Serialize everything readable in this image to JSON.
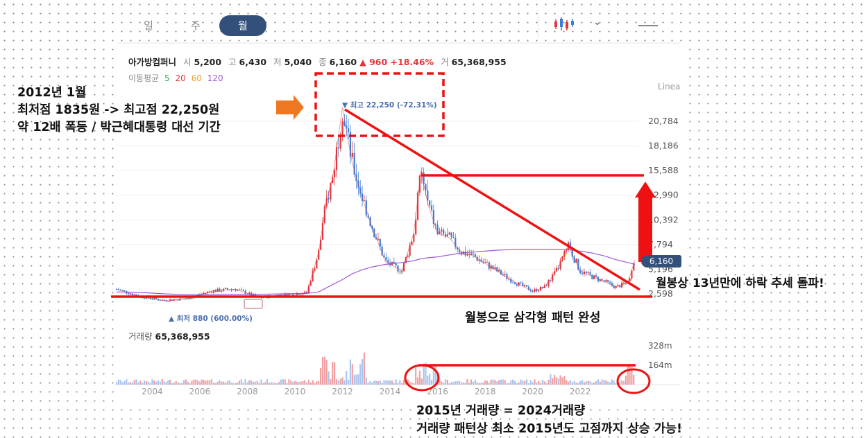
{
  "tabs": [
    "일",
    "주",
    "월"
  ],
  "active_tab": "월",
  "header": {
    "name": "아가방컴퍼니",
    "open_label": "시",
    "open": "5,200",
    "high_label": "고",
    "high": "6,430",
    "low_label": "저",
    "low": "5,040",
    "close_label": "종",
    "close": "6,160",
    "change": "▲ 960 +18.46%",
    "volume_label": "거",
    "volume": "65,368,955"
  },
  "ma": {
    "label": "이동평균",
    "p5": "5",
    "p20": "20",
    "p60": "60",
    "p120": "120"
  },
  "scale_label": "Linea",
  "price_tag": "6,160",
  "max_label": "▼ 최고 22,250 (-72.31%)",
  "min_label": "▲ 최저 880 (600.00%)",
  "volume_panel": {
    "label": "거래량",
    "value": "65,368,955"
  },
  "annotations": {
    "left_1": "2012년 1월",
    "left_2": "최저점 1835원 -> 최고점 22,250원",
    "left_3": "약 12배 폭등 / 박근혜대통령 대선 기간",
    "right": "월봉상 13년만에 하락 추세 돌파!",
    "triangle": "월봉으로 삼각형 패턴 완성",
    "vol_1": "2015년 거래량 = 2024거래량",
    "vol_2": "거래량 패턴상 최소 2015년도 고점까지 상승 가능!"
  },
  "colors": {
    "up": "#e2373b",
    "down": "#3b7dd8",
    "annot": "#ee1111",
    "accent": "#33507a",
    "arrow": "#ee7722"
  },
  "chart_data": {
    "type": "line",
    "title": "",
    "xlabel": "",
    "ylabel": "",
    "y_ticks": [
      "20,784",
      "18,186",
      "15,588",
      "12,990",
      "10,392",
      "7,794",
      "5,196",
      "2,598"
    ],
    "x_ticks": [
      "2004",
      "2006",
      "2008",
      "2010",
      "2012",
      "2014",
      "2016",
      "2018",
      "2020",
      "2022"
    ],
    "volume_ticks": [
      "328m",
      "164m"
    ],
    "x": [
      2002.5,
      2003.5,
      2004.5,
      2005.5,
      2006.5,
      2007.5,
      2008.5,
      2009.5,
      2010.5,
      2011.0,
      2011.3,
      2011.6,
      2012.0,
      2012.4,
      2012.8,
      2013.2,
      2013.8,
      2014.5,
      2015.0,
      2015.3,
      2015.6,
      2016.0,
      2016.5,
      2017.0,
      2017.5,
      2018.0,
      2018.5,
      2019.0,
      2019.5,
      2020.0,
      2020.5,
      2021.0,
      2021.5,
      2022.0,
      2022.5,
      2023.0,
      2023.5,
      2024.0,
      2024.3
    ],
    "close": [
      3100,
      2300,
      1900,
      2100,
      2900,
      3100,
      2200,
      2500,
      2700,
      7000,
      12000,
      15000,
      22250,
      16500,
      13000,
      10000,
      6000,
      5000,
      9000,
      15500,
      12000,
      9000,
      8500,
      7000,
      6600,
      5800,
      5000,
      4200,
      3500,
      2900,
      3300,
      5000,
      7600,
      5000,
      4400,
      3900,
      3300,
      3800,
      6160
    ],
    "ma120": [
      2800,
      2750,
      2600,
      2500,
      2500,
      2550,
      2550,
      2600,
      2650,
      2800,
      3200,
      3600,
      4100,
      4700,
      5100,
      5400,
      5700,
      5900,
      6100,
      6300,
      6400,
      6500,
      6700,
      6900,
      7000,
      7100,
      7200,
      7250,
      7300,
      7300,
      7300,
      7300,
      7250,
      7100,
      6900,
      6600,
      6200,
      5900,
      5700
    ],
    "volume_highlights": [
      "2015",
      "2024"
    ]
  }
}
